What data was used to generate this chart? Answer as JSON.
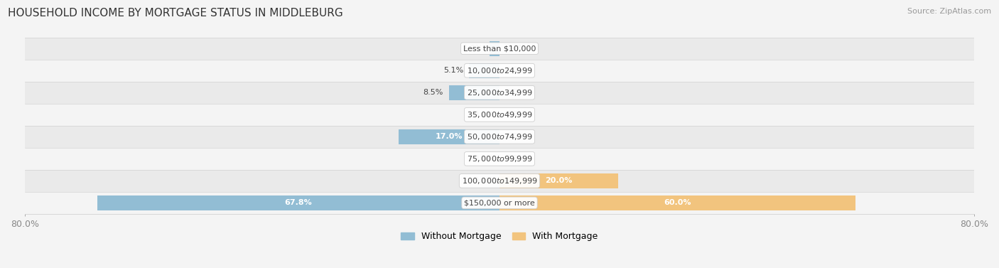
{
  "title": "HOUSEHOLD INCOME BY MORTGAGE STATUS IN MIDDLEBURG",
  "source": "Source: ZipAtlas.com",
  "categories": [
    "Less than $10,000",
    "$10,000 to $24,999",
    "$25,000 to $34,999",
    "$35,000 to $49,999",
    "$50,000 to $74,999",
    "$75,000 to $99,999",
    "$100,000 to $149,999",
    "$150,000 or more"
  ],
  "without_mortgage": [
    1.7,
    5.1,
    8.5,
    0.0,
    17.0,
    0.0,
    0.0,
    67.8
  ],
  "with_mortgage": [
    0.0,
    0.0,
    0.0,
    0.0,
    0.0,
    0.0,
    20.0,
    60.0
  ],
  "color_without": "#92bdd4",
  "color_with": "#f2c47e",
  "xlim_left": -80.0,
  "xlim_right": 80.0,
  "bg_color": "#f4f4f4",
  "row_colors": [
    "#eaeaea",
    "#f4f4f4"
  ],
  "label_color": "#444444",
  "title_fontsize": 11,
  "source_fontsize": 8,
  "bar_label_fontsize": 8,
  "category_fontsize": 8
}
